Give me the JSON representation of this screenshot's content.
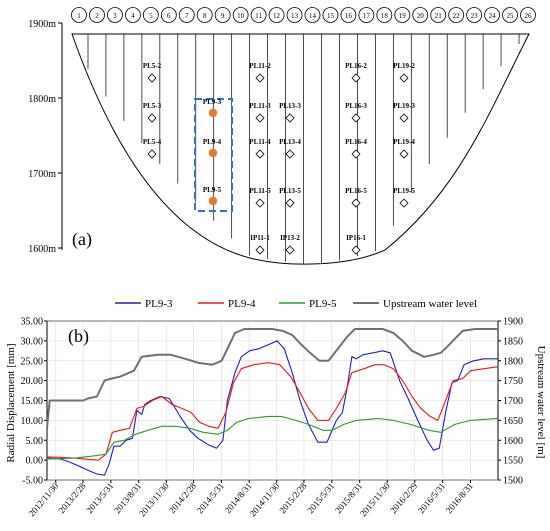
{
  "panel_a": {
    "label": "(a)",
    "elevation_ticks": [
      "1900m",
      "1800m",
      "1700m",
      "1600m"
    ],
    "column_numbers": [
      "1",
      "2",
      "3",
      "4",
      "5",
      "6",
      "7",
      "8",
      "9",
      "10",
      "11",
      "12",
      "13",
      "14",
      "15",
      "16",
      "17",
      "18",
      "19",
      "20",
      "21",
      "22",
      "23",
      "24",
      "25",
      "26"
    ],
    "sensor_labels": [
      "PL5-2",
      "PL5-3",
      "PL5-4",
      "PL9-3",
      "PL9-4",
      "PL9-5",
      "PL11-2",
      "PL11-3",
      "PL11-4",
      "PL11-5",
      "IP11-1",
      "PL13-3",
      "PL13-4",
      "PL13-5",
      "IP13-2",
      "PL16-2",
      "PL16-3",
      "PL16-4",
      "PL16-5",
      "IP16-1",
      "PL19-2",
      "PL19-3",
      "PL19-4",
      "PL19-5"
    ],
    "highlight_color": "#2e6fd8",
    "marker_color": "#e87a2c"
  },
  "chart_data": {
    "type": "line",
    "panel_label": "(b)",
    "xlabel": "",
    "ylabel": "Radial Displacement [mm]",
    "ylabel_right": "Upstream water level [m]",
    "ylim": [
      -5,
      35
    ],
    "ylim_right": [
      1500,
      1900
    ],
    "yticks": [
      "-5.00",
      "0.00",
      "5.00",
      "10.00",
      "15.00",
      "20.00",
      "25.00",
      "30.00",
      "35.00"
    ],
    "yticks_right": [
      "1500",
      "1550",
      "1600",
      "1650",
      "1700",
      "1750",
      "1800",
      "1850",
      "1900"
    ],
    "x_tick_labels": [
      "2012/11/30",
      "2013/2/28",
      "2013/5/31",
      "2013/8/31",
      "2013/11/30",
      "2014/2/28",
      "2014/5/31",
      "2014/8/31",
      "2014/11/30",
      "2015/2/28",
      "2015/5/31",
      "2015/8/31",
      "2015/11/30",
      "2016/2/29",
      "2016/5/31",
      "2016/8/31"
    ],
    "xlim": [
      "2012/11/01",
      "2016/11/30"
    ],
    "grid": true,
    "legend_position": "top",
    "series": [
      {
        "name": "PL9-3",
        "color": "#1f1fb5",
        "axis": "left",
        "points": [
          [
            "2012/11/01",
            0.5
          ],
          [
            "2012/12/15",
            0.3
          ],
          [
            "2013/01/15",
            -0.5
          ],
          [
            "2013/02/15",
            -1.5
          ],
          [
            "2013/03/15",
            -2.5
          ],
          [
            "2013/04/15",
            -3.5
          ],
          [
            "2013/05/10",
            -3.8
          ],
          [
            "2013/05/25",
            -1.0
          ],
          [
            "2013/06/10",
            3.5
          ],
          [
            "2013/07/01",
            3.5
          ],
          [
            "2013/07/20",
            5.0
          ],
          [
            "2013/08/10",
            5.5
          ],
          [
            "2013/08/25",
            12.5
          ],
          [
            "2013/09/10",
            11.5
          ],
          [
            "2013/09/20",
            14.0
          ],
          [
            "2013/10/10",
            15.0
          ],
          [
            "2013/11/10",
            16.0
          ],
          [
            "2013/12/10",
            15.5
          ],
          [
            "2014/01/15",
            11.0
          ],
          [
            "2014/02/15",
            7.5
          ],
          [
            "2014/03/15",
            5.5
          ],
          [
            "2014/04/15",
            4.0
          ],
          [
            "2014/05/15",
            3.0
          ],
          [
            "2014/06/05",
            5.0
          ],
          [
            "2014/06/20",
            15.0
          ],
          [
            "2014/07/15",
            22.0
          ],
          [
            "2014/08/05",
            26.0
          ],
          [
            "2014/09/01",
            27.5
          ],
          [
            "2014/10/01",
            28.0
          ],
          [
            "2014/11/01",
            29.0
          ],
          [
            "2014/12/01",
            30.0
          ],
          [
            "2014/12/25",
            28.0
          ],
          [
            "2015/01/20",
            22.0
          ],
          [
            "2015/02/15",
            15.0
          ],
          [
            "2015/03/15",
            9.0
          ],
          [
            "2015/04/15",
            4.5
          ],
          [
            "2015/05/15",
            4.5
          ],
          [
            "2015/06/15",
            10.0
          ],
          [
            "2015/07/05",
            12.0
          ],
          [
            "2015/07/20",
            18.0
          ],
          [
            "2015/08/05",
            26.0
          ],
          [
            "2015/08/20",
            25.5
          ],
          [
            "2015/09/10",
            26.5
          ],
          [
            "2015/10/15",
            27.0
          ],
          [
            "2015/11/15",
            27.5
          ],
          [
            "2015/12/10",
            27.0
          ],
          [
            "2016/01/10",
            20.0
          ],
          [
            "2016/02/10",
            15.0
          ],
          [
            "2016/03/10",
            10.0
          ],
          [
            "2016/04/10",
            5.0
          ],
          [
            "2016/05/01",
            2.5
          ],
          [
            "2016/05/20",
            3.0
          ],
          [
            "2016/06/10",
            12.0
          ],
          [
            "2016/07/01",
            19.5
          ],
          [
            "2016/07/20",
            20.0
          ],
          [
            "2016/08/10",
            24.0
          ],
          [
            "2016/09/10",
            25.0
          ],
          [
            "2016/10/15",
            25.5
          ],
          [
            "2016/11/30",
            25.5
          ]
        ]
      },
      {
        "name": "PL9-4",
        "color": "#e81818",
        "axis": "left",
        "points": [
          [
            "2012/11/01",
            0.8
          ],
          [
            "2012/12/15",
            0.7
          ],
          [
            "2013/02/01",
            0.5
          ],
          [
            "2013/03/15",
            0.2
          ],
          [
            "2013/04/20",
            0.0
          ],
          [
            "2013/05/15",
            1.5
          ],
          [
            "2013/06/05",
            7.0
          ],
          [
            "2013/07/01",
            7.5
          ],
          [
            "2013/08/01",
            8.0
          ],
          [
            "2013/08/25",
            13.0
          ],
          [
            "2013/09/15",
            13.5
          ],
          [
            "2013/10/15",
            15.0
          ],
          [
            "2013/11/15",
            16.0
          ],
          [
            "2013/12/20",
            14.0
          ],
          [
            "2014/01/20",
            13.0
          ],
          [
            "2014/02/20",
            12.0
          ],
          [
            "2014/03/20",
            9.5
          ],
          [
            "2014/04/20",
            8.5
          ],
          [
            "2014/05/20",
            8.0
          ],
          [
            "2014/06/15",
            12.0
          ],
          [
            "2014/07/10",
            19.5
          ],
          [
            "2014/08/05",
            23.0
          ],
          [
            "2014/09/15",
            24.0
          ],
          [
            "2014/11/01",
            24.5
          ],
          [
            "2014/12/10",
            24.0
          ],
          [
            "2015/01/15",
            21.0
          ],
          [
            "2015/02/15",
            17.0
          ],
          [
            "2015/03/15",
            13.0
          ],
          [
            "2015/04/15",
            10.0
          ],
          [
            "2015/05/20",
            10.0
          ],
          [
            "2015/06/15",
            13.0
          ],
          [
            "2015/07/15",
            17.0
          ],
          [
            "2015/08/05",
            22.0
          ],
          [
            "2015/09/15",
            23.0
          ],
          [
            "2015/10/20",
            24.0
          ],
          [
            "2015/11/20",
            24.0
          ],
          [
            "2015/12/20",
            23.0
          ],
          [
            "2016/01/20",
            20.0
          ],
          [
            "2016/02/20",
            16.0
          ],
          [
            "2016/03/20",
            13.0
          ],
          [
            "2016/04/20",
            11.0
          ],
          [
            "2016/05/15",
            10.0
          ],
          [
            "2016/06/10",
            15.0
          ],
          [
            "2016/07/05",
            20.0
          ],
          [
            "2016/08/05",
            20.5
          ],
          [
            "2016/08/31",
            22.5
          ],
          [
            "2016/10/15",
            23.0
          ],
          [
            "2016/11/30",
            23.5
          ]
        ]
      },
      {
        "name": "PL9-5",
        "color": "#2a9a2a",
        "axis": "left",
        "points": [
          [
            "2012/11/01",
            0.3
          ],
          [
            "2013/02/01",
            0.5
          ],
          [
            "2013/04/01",
            1.0
          ],
          [
            "2013/05/15",
            1.5
          ],
          [
            "2013/06/10",
            4.5
          ],
          [
            "2013/07/15",
            5.0
          ],
          [
            "2013/08/20",
            6.5
          ],
          [
            "2013/09/30",
            7.5
          ],
          [
            "2013/11/15",
            8.5
          ],
          [
            "2014/01/01",
            8.5
          ],
          [
            "2014/02/15",
            8.0
          ],
          [
            "2014/04/01",
            7.0
          ],
          [
            "2014/05/20",
            6.5
          ],
          [
            "2014/06/20",
            7.5
          ],
          [
            "2014/07/20",
            9.5
          ],
          [
            "2014/08/31",
            10.5
          ],
          [
            "2014/11/01",
            11.0
          ],
          [
            "2014/12/15",
            11.0
          ],
          [
            "2015/02/01",
            10.0
          ],
          [
            "2015/03/15",
            9.0
          ],
          [
            "2015/05/01",
            7.5
          ],
          [
            "2015/06/01",
            7.5
          ],
          [
            "2015/07/10",
            9.0
          ],
          [
            "2015/08/20",
            10.0
          ],
          [
            "2015/11/01",
            10.5
          ],
          [
            "2015/12/20",
            10.0
          ],
          [
            "2016/02/15",
            9.0
          ],
          [
            "2016/04/15",
            7.5
          ],
          [
            "2016/05/25",
            7.0
          ],
          [
            "2016/07/10",
            9.0
          ],
          [
            "2016/08/31",
            10.0
          ],
          [
            "2016/11/30",
            10.5
          ]
        ]
      },
      {
        "name": "Upstream water level",
        "color": "#707070",
        "axis": "right",
        "points": [
          [
            "2012/11/01",
            1630
          ],
          [
            "2012/11/10",
            1700
          ],
          [
            "2013/01/15",
            1700
          ],
          [
            "2013/03/01",
            1700
          ],
          [
            "2013/03/15",
            1705
          ],
          [
            "2013/04/15",
            1710
          ],
          [
            "2013/05/10",
            1750
          ],
          [
            "2013/06/01",
            1755
          ],
          [
            "2013/07/01",
            1760
          ],
          [
            "2013/08/15",
            1775
          ],
          [
            "2013/09/10",
            1810
          ],
          [
            "2013/11/01",
            1815
          ],
          [
            "2013/12/15",
            1815
          ],
          [
            "2014/02/01",
            1805
          ],
          [
            "2014/03/15",
            1795
          ],
          [
            "2014/05/01",
            1790
          ],
          [
            "2014/06/01",
            1800
          ],
          [
            "2014/06/20",
            1830
          ],
          [
            "2014/07/15",
            1870
          ],
          [
            "2014/08/15",
            1880
          ],
          [
            "2014/11/15",
            1880
          ],
          [
            "2014/12/20",
            1875
          ],
          [
            "2015/01/20",
            1865
          ],
          [
            "2015/02/20",
            1840
          ],
          [
            "2015/03/20",
            1820
          ],
          [
            "2015/04/20",
            1800
          ],
          [
            "2015/05/20",
            1800
          ],
          [
            "2015/06/20",
            1830
          ],
          [
            "2015/07/20",
            1860
          ],
          [
            "2015/08/15",
            1880
          ],
          [
            "2015/11/15",
            1880
          ],
          [
            "2015/12/20",
            1870
          ],
          [
            "2016/01/20",
            1850
          ],
          [
            "2016/02/20",
            1825
          ],
          [
            "2016/03/31",
            1810
          ],
          [
            "2016/05/01",
            1815
          ],
          [
            "2016/05/25",
            1820
          ],
          [
            "2016/06/15",
            1835
          ],
          [
            "2016/07/10",
            1855
          ],
          [
            "2016/08/05",
            1875
          ],
          [
            "2016/09/15",
            1880
          ],
          [
            "2016/11/30",
            1880
          ]
        ]
      }
    ]
  }
}
